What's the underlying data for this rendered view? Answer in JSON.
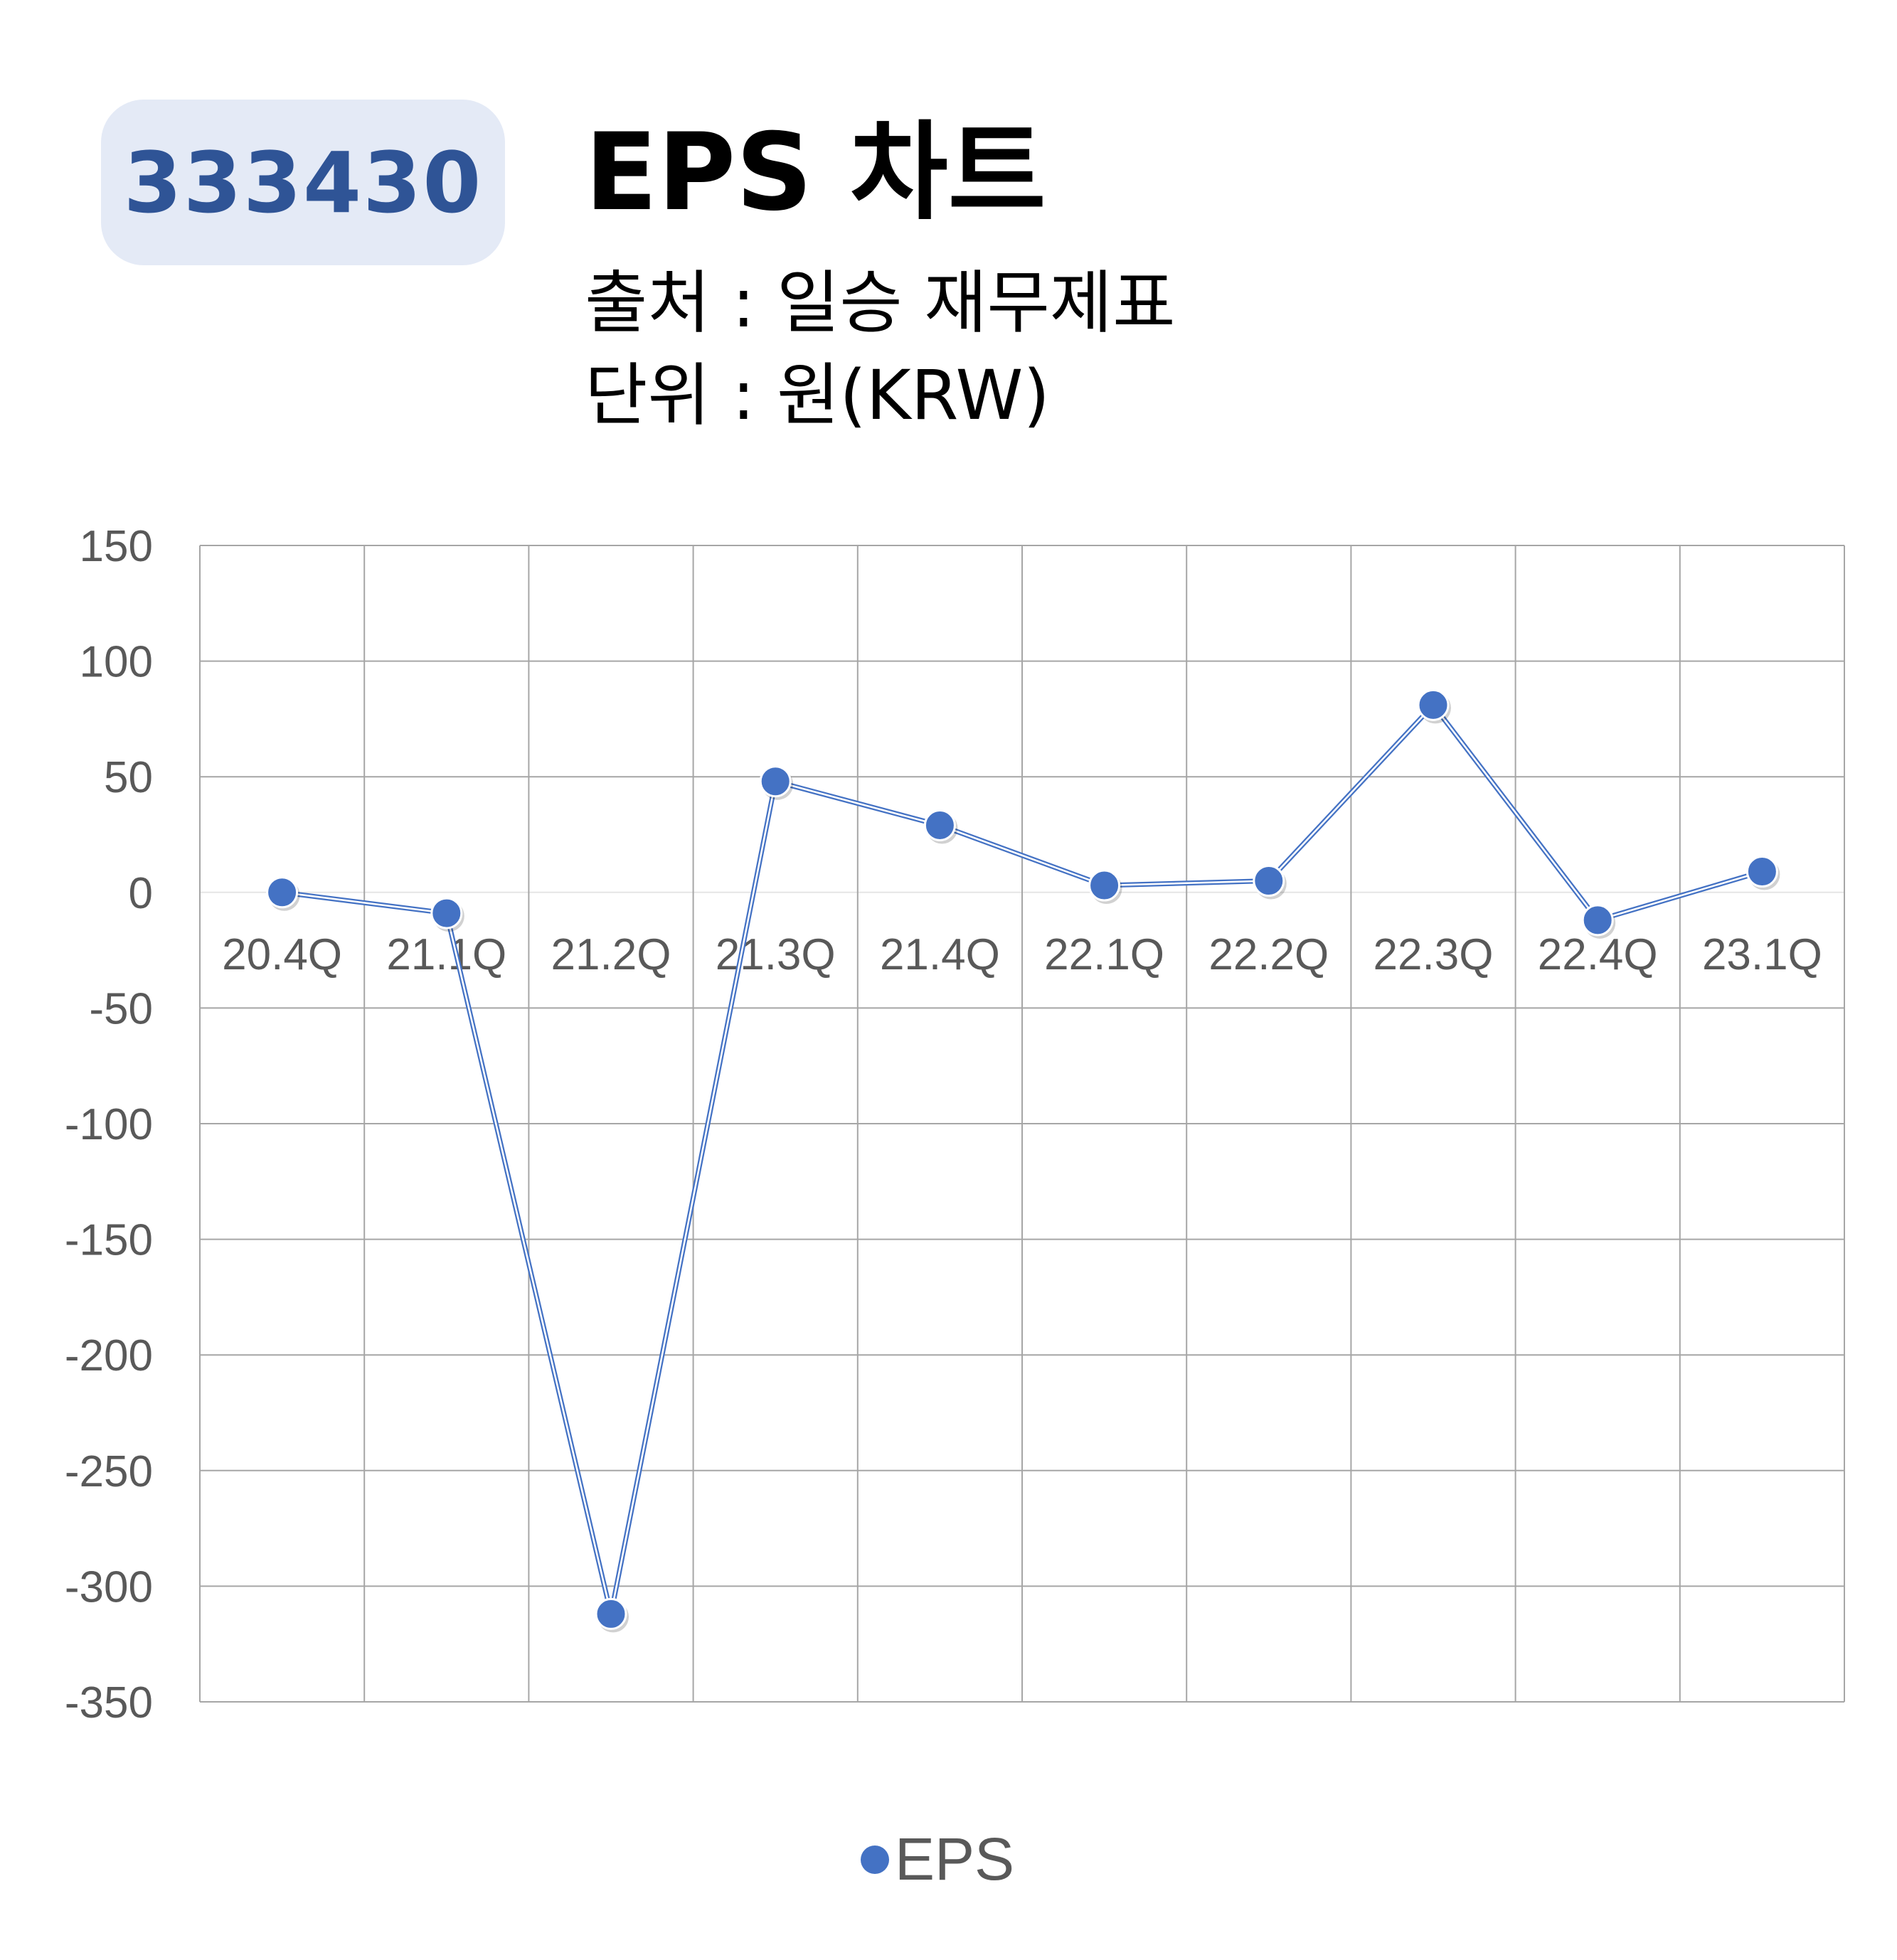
{
  "header": {
    "code": "333430",
    "title": "EPS 차트",
    "source": "출처 : 일승 재무제표",
    "unit": "단위 : 원(KRW)"
  },
  "colors": {
    "series": "#4472c4",
    "badge_bg": "#e4eaf6",
    "badge_text": "#2f5496",
    "grid": "#a6a6a6"
  },
  "chart_data": {
    "type": "line",
    "categories": [
      "20.4Q",
      "21.1Q",
      "21.2Q",
      "21.3Q",
      "21.4Q",
      "22.1Q",
      "22.2Q",
      "22.3Q",
      "22.4Q",
      "23.1Q"
    ],
    "series": [
      {
        "name": "EPS",
        "values": [
          0,
          -9,
          -312,
          48,
          29,
          3,
          5,
          81,
          -12,
          9
        ]
      }
    ],
    "y_ticks": [
      "150",
      "100",
      "50",
      "0",
      "-50",
      "-100",
      "-150",
      "-200",
      "-250",
      "-300",
      "-350"
    ],
    "ylim": [
      -350,
      150
    ],
    "grid": true,
    "legend": "bottom"
  }
}
